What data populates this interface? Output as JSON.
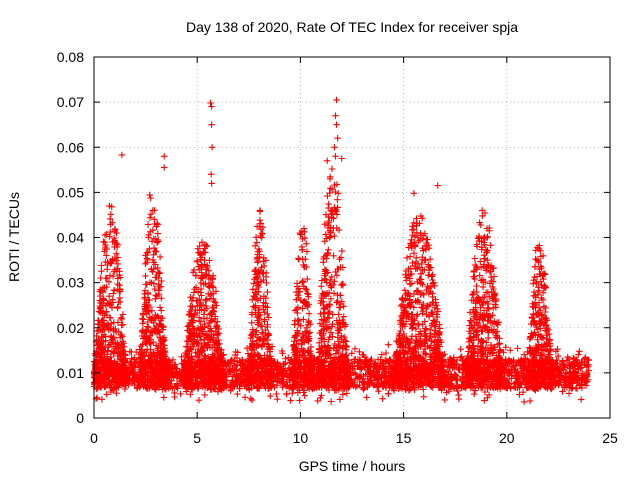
{
  "chart_data": {
    "type": "scatter",
    "title": "Day 138 of 2020, Rate Of TEC Index for receiver spja",
    "xlabel": "GPS time / hours",
    "ylabel": "ROTI / TECUs",
    "xlim": [
      0,
      25
    ],
    "ylim": [
      0,
      0.08
    ],
    "xticks": [
      0,
      5,
      10,
      15,
      20,
      25
    ],
    "xtick_labels": [
      "0",
      "5",
      "10",
      "15",
      "20",
      "25"
    ],
    "yticks": [
      0,
      0.01,
      0.02,
      0.03,
      0.04,
      0.05,
      0.06,
      0.07,
      0.08
    ],
    "ytick_labels": [
      "0",
      "0.01",
      "0.02",
      "0.03",
      "0.04",
      "0.05",
      "0.06",
      "0.07",
      "0.08"
    ],
    "grid": true,
    "marker": "plus",
    "color": "#ff0000",
    "series": [
      {
        "name": "ROTI",
        "activity_windows": [
          {
            "t_start": 0.0,
            "t_end": 1.6,
            "peak": 0.047
          },
          {
            "t_start": 2.2,
            "t_end": 3.5,
            "peak": 0.051
          },
          {
            "t_start": 4.3,
            "t_end": 6.3,
            "peak": 0.04
          },
          {
            "t_start": 7.5,
            "t_end": 8.6,
            "peak": 0.046
          },
          {
            "t_start": 9.6,
            "t_end": 10.6,
            "peak": 0.044
          },
          {
            "t_start": 10.8,
            "t_end": 12.3,
            "peak": 0.058
          },
          {
            "t_start": 14.5,
            "t_end": 17.0,
            "peak": 0.045
          },
          {
            "t_start": 18.0,
            "t_end": 19.8,
            "peak": 0.046
          },
          {
            "t_start": 21.0,
            "t_end": 22.2,
            "peak": 0.041
          }
        ],
        "outliers": [
          {
            "x": 1.35,
            "y": 0.0583
          },
          {
            "x": 3.4,
            "y": 0.058
          },
          {
            "x": 3.4,
            "y": 0.0555
          },
          {
            "x": 5.65,
            "y": 0.0698
          },
          {
            "x": 5.7,
            "y": 0.069
          },
          {
            "x": 5.7,
            "y": 0.065
          },
          {
            "x": 5.72,
            "y": 0.06
          },
          {
            "x": 5.68,
            "y": 0.054
          },
          {
            "x": 5.7,
            "y": 0.052
          },
          {
            "x": 11.75,
            "y": 0.0705
          },
          {
            "x": 11.7,
            "y": 0.067
          },
          {
            "x": 11.75,
            "y": 0.065
          },
          {
            "x": 11.8,
            "y": 0.062
          },
          {
            "x": 11.65,
            "y": 0.06
          },
          {
            "x": 11.7,
            "y": 0.058
          },
          {
            "x": 12.0,
            "y": 0.0575
          },
          {
            "x": 15.5,
            "y": 0.0498
          },
          {
            "x": 16.65,
            "y": 0.0515
          },
          {
            "x": 11.3,
            "y": 0.057
          }
        ]
      }
    ]
  }
}
